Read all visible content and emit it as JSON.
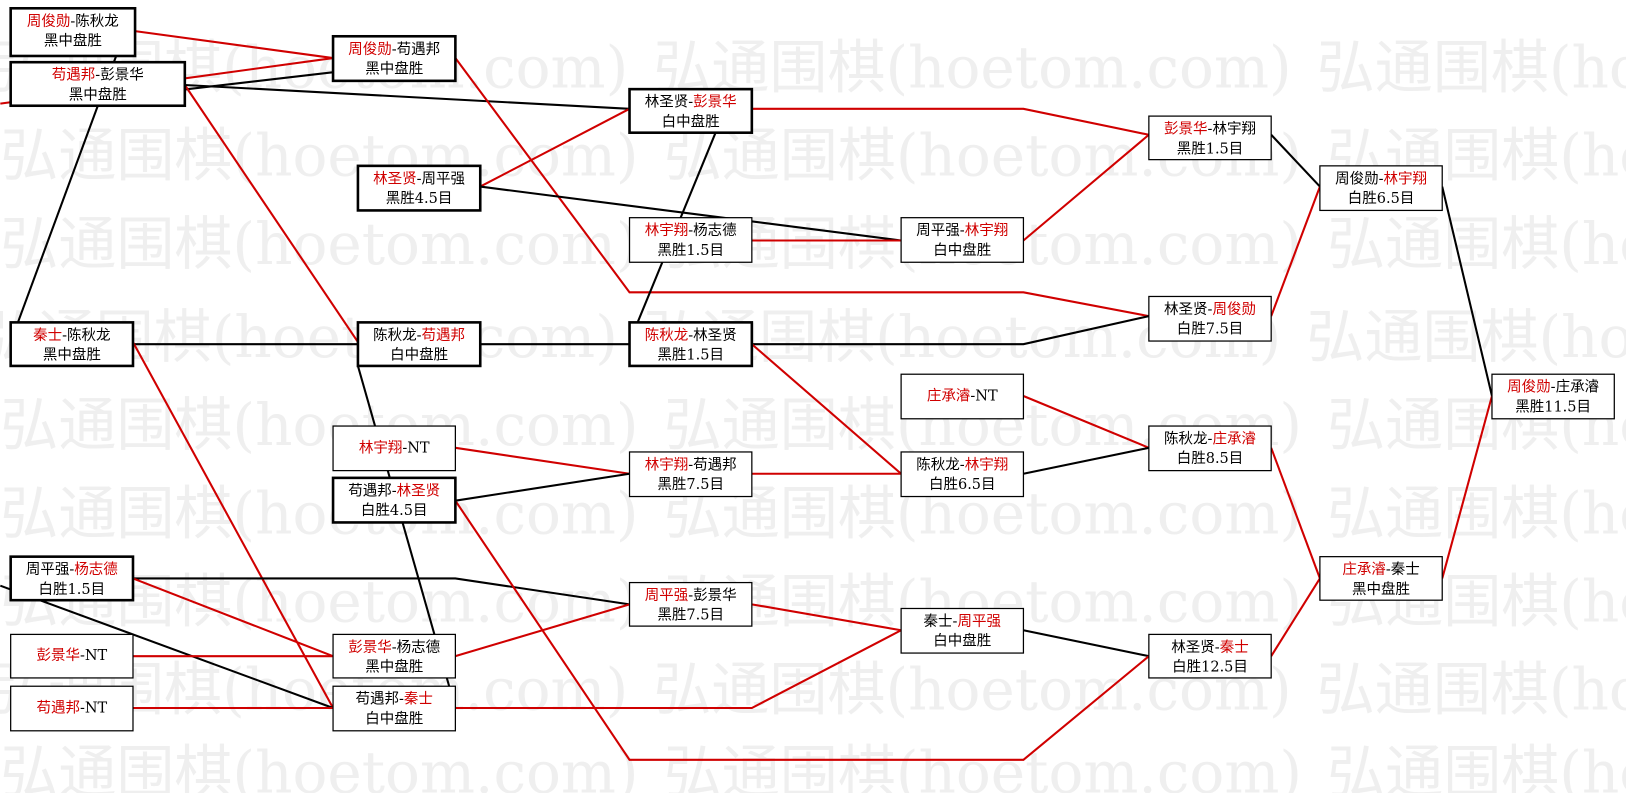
{
  "separator": "-",
  "watermark": "弘通围棋(hoetom.com)",
  "matches": [
    {
      "player1": "周俊勋",
      "player2": "陈秋龙",
      "winner": 1,
      "result": "黑中盘胜"
    },
    {
      "player1": "苟遇邦",
      "player2": "彭景华",
      "winner": 1,
      "result": "黑中盘胜"
    },
    {
      "player1": "周俊勋",
      "player2": "苟遇邦",
      "winner": 1,
      "result": "黑中盘胜"
    },
    {
      "player1": "林圣贤",
      "player2": "彭景华",
      "winner": 2,
      "result": "白中盘胜"
    },
    {
      "player1": "林圣贤",
      "player2": "周平强",
      "winner": 1,
      "result": "黑胜4.5目"
    },
    {
      "player1": "林宇翔",
      "player2": "杨志德",
      "winner": 1,
      "result": "黑胜1.5目"
    },
    {
      "player1": "周平强",
      "player2": "林宇翔",
      "winner": 2,
      "result": "白中盘胜"
    },
    {
      "player1": "彭景华",
      "player2": "林宇翔",
      "winner": 1,
      "result": "黑胜1.5目"
    },
    {
      "player1": "周俊勋",
      "player2": "林宇翔",
      "winner": 2,
      "result": "白胜6.5目"
    },
    {
      "player1": "秦士",
      "player2": "陈秋龙",
      "winner": 1,
      "result": "黑中盘胜"
    },
    {
      "player1": "陈秋龙",
      "player2": "苟遇邦",
      "winner": 2,
      "result": "白中盘胜"
    },
    {
      "player1": "陈秋龙",
      "player2": "林圣贤",
      "winner": 1,
      "result": "黑胜1.5目"
    },
    {
      "player1": "林圣贤",
      "player2": "周俊勋",
      "winner": 2,
      "result": "白胜7.5目"
    },
    {
      "player1": "周俊勋",
      "player2": "庄承濬",
      "winner": 1,
      "result": "黑胜11.5目"
    },
    {
      "player1": "庄承濬",
      "player2": "NT",
      "winner": 1
    },
    {
      "player1": "陈秋龙",
      "player2": "庄承濬",
      "winner": 2,
      "result": "白胜8.5目"
    },
    {
      "player1": "林宇翔",
      "player2": "NT",
      "winner": 1
    },
    {
      "player1": "苟遇邦",
      "player2": "林圣贤",
      "winner": 2,
      "result": "白胜4.5目"
    },
    {
      "player1": "林宇翔",
      "player2": "苟遇邦",
      "winner": 1,
      "result": "黑胜7.5目"
    },
    {
      "player1": "陈秋龙",
      "player2": "林宇翔",
      "winner": 2,
      "result": "白胜6.5目"
    },
    {
      "player1": "周平强",
      "player2": "杨志德",
      "winner": 2,
      "result": "白胜1.5目"
    },
    {
      "player1": "庄承濬",
      "player2": "秦士",
      "winner": 1,
      "result": "黑中盘胜"
    },
    {
      "player1": "周平强",
      "player2": "彭景华",
      "winner": 1,
      "result": "黑胜7.5目"
    },
    {
      "player1": "秦士",
      "player2": "周平强",
      "winner": 2,
      "result": "白中盘胜"
    },
    {
      "player1": "彭景华",
      "player2": "NT",
      "winner": 1
    },
    {
      "player1": "彭景华",
      "player2": "杨志德",
      "winner": 1,
      "result": "黑中盘胜"
    },
    {
      "player1": "林圣贤",
      "player2": "秦士",
      "winner": 2,
      "result": "白胜12.5目"
    },
    {
      "player1": "苟遇邦",
      "player2": "NT",
      "winner": 1
    },
    {
      "player1": "苟遇邦",
      "player2": "秦士",
      "winner": 2,
      "result": "白中盘胜"
    }
  ]
}
